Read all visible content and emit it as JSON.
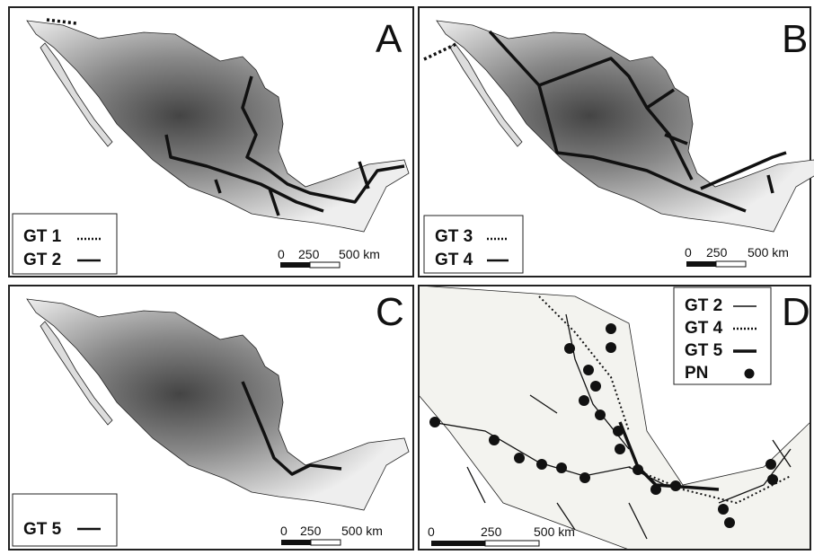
{
  "panels": [
    {
      "letter": "A",
      "legend": [
        "GT 1",
        "GT 2"
      ],
      "scale": [
        "0",
        "250",
        "500 km"
      ]
    },
    {
      "letter": "B",
      "legend": [
        "GT 3",
        "GT 4"
      ],
      "scale": [
        "0",
        "250",
        "500 km"
      ]
    },
    {
      "letter": "C",
      "legend": [
        "GT 5"
      ],
      "scale": [
        "0",
        "250",
        "500 km"
      ]
    },
    {
      "letter": "D",
      "legend": [
        "GT 2",
        "GT 4",
        "GT 5",
        "PN"
      ],
      "scale": [
        "0",
        "250",
        "500 km"
      ]
    }
  ]
}
